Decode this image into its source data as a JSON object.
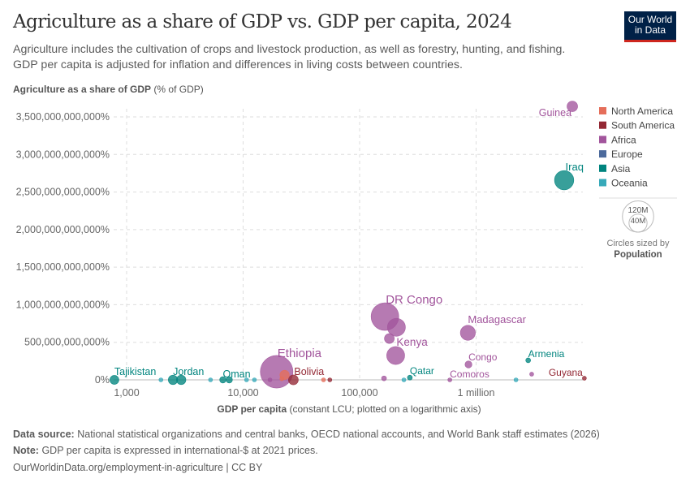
{
  "header": {
    "title": "Agriculture as a share of GDP vs. GDP per capita, 2024",
    "subtitle_line1": "Agriculture includes the cultivation of crops and livestock production, as well as forestry, hunting, and fishing.",
    "subtitle_line2": "GDP per capita is adjusted for inflation and differences in living costs between countries.",
    "logo_line1": "Our World",
    "logo_line2": "in Data"
  },
  "footer": {
    "source_label": "Data source:",
    "source_text": "National statistical organizations and central banks, OECD national accounts, and World Bank staff estimates (2026)",
    "note_label": "Note:",
    "note_text": "GDP per capita is expressed in international-$ at 2021 prices.",
    "url": "OurWorldinData.org/employment-in-agriculture | CC BY"
  },
  "chart_data": {
    "type": "scatter",
    "title": "Agriculture as a share of GDP vs. GDP per capita, 2024",
    "ylabel_bold": "Agriculture as a share of GDP",
    "ylabel_unit": "(% of GDP)",
    "xlabel_bold": "GDP per capita",
    "xlabel_rest": "(constant LCU; plotted on a logarithmic axis)",
    "x_scale": "log",
    "xlim": [
      770,
      8500000
    ],
    "ylim": [
      0,
      3500000000000
    ],
    "grid": true,
    "x_ticks": [
      {
        "value": 1000,
        "label": "1,000"
      },
      {
        "value": 10000,
        "label": "10,000"
      },
      {
        "value": 100000,
        "label": "100,000"
      },
      {
        "value": 1000000,
        "label": "1 million"
      }
    ],
    "y_ticks": [
      {
        "value": 0,
        "label": "0%"
      },
      {
        "value": 500000000000,
        "label": "500,000,000,000%"
      },
      {
        "value": 1000000000000,
        "label": "1,000,000,000,000%"
      },
      {
        "value": 1500000000000,
        "label": "1,500,000,000,000%"
      },
      {
        "value": 2000000000000,
        "label": "2,000,000,000,000%"
      },
      {
        "value": 2500000000000,
        "label": "2,500,000,000,000%"
      },
      {
        "value": 3000000000000,
        "label": "3,000,000,000,000%"
      },
      {
        "value": 3500000000000,
        "label": "3,500,000,000,000%"
      }
    ],
    "legend_placement": "right",
    "legend": [
      {
        "name": "North America",
        "color": "#E56E5A"
      },
      {
        "name": "South America",
        "color": "#932834"
      },
      {
        "name": "Africa",
        "color": "#A2559C"
      },
      {
        "name": "Europe",
        "color": "#4C6A9C"
      },
      {
        "name": "Asia",
        "color": "#00847E"
      },
      {
        "name": "Oceania",
        "color": "#38AABA"
      }
    ],
    "size_legend": {
      "title_line1": "Circles sized by",
      "title_line2": "Population",
      "big": "120M",
      "small": "40M",
      "big_value": 120,
      "small_value": 40
    },
    "points": [
      {
        "label": "Tajikistan",
        "region": "Asia",
        "x": 785,
        "y": 0,
        "pop": 10
      },
      {
        "label": "",
        "region": "Oceania",
        "x": 1970,
        "y": 0,
        "pop": 1
      },
      {
        "label": "Jordan",
        "region": "Asia",
        "x": 2500,
        "y": 0,
        "pop": 11
      },
      {
        "label": "",
        "region": "Asia",
        "x": 2940,
        "y": 0,
        "pop": 11
      },
      {
        "label": "",
        "region": "Oceania",
        "x": 5250,
        "y": 0,
        "pop": 1
      },
      {
        "label": "Oman",
        "region": "Asia",
        "x": 6700,
        "y": 0,
        "pop": 5
      },
      {
        "label": "",
        "region": "Asia",
        "x": 7600,
        "y": 0,
        "pop": 5
      },
      {
        "label": "",
        "region": "Oceania",
        "x": 10700,
        "y": 0,
        "pop": 1
      },
      {
        "label": "",
        "region": "Oceania",
        "x": 12500,
        "y": 0,
        "pop": 1.5
      },
      {
        "label": "",
        "region": "Africa",
        "x": 17000,
        "y": 0,
        "pop": 1.5
      },
      {
        "label": "Ethiopia",
        "region": "Africa",
        "x": 19400,
        "y": 108000000000,
        "pop": 132
      },
      {
        "label": "",
        "region": "North America",
        "x": 22700,
        "y": 65000000000,
        "pop": 11
      },
      {
        "label": "",
        "region": "North America",
        "x": 21500,
        "y": 15000000000,
        "pop": 1.5
      },
      {
        "label": "Bolivia",
        "region": "South America",
        "x": 27000,
        "y": 0,
        "pop": 12
      },
      {
        "label": "",
        "region": "North America",
        "x": 49000,
        "y": 0,
        "pop": 1
      },
      {
        "label": "",
        "region": "South America",
        "x": 55500,
        "y": 0,
        "pop": 1
      },
      {
        "label": "",
        "region": "Africa",
        "x": 162000,
        "y": 20000000000,
        "pop": 3
      },
      {
        "label": "DR Congo",
        "region": "Africa",
        "x": 165000,
        "y": 842000000000,
        "pop": 95
      },
      {
        "label": "",
        "region": "Africa",
        "x": 207000,
        "y": 700000000000,
        "pop": 40
      },
      {
        "label": "",
        "region": "Africa",
        "x": 180000,
        "y": 550000000000,
        "pop": 12
      },
      {
        "label": "Kenya",
        "region": "Africa",
        "x": 204000,
        "y": 324000000000,
        "pop": 40
      },
      {
        "label": "",
        "region": "Oceania",
        "x": 240000,
        "y": 0,
        "pop": 1
      },
      {
        "label": "Qatar",
        "region": "Asia",
        "x": 270000,
        "y": 30000000000,
        "pop": 3
      },
      {
        "label": "Comoros",
        "region": "Africa",
        "x": 595000,
        "y": 0,
        "pop": 1
      },
      {
        "label": "Madagascar",
        "region": "Africa",
        "x": 850000,
        "y": 626000000000,
        "pop": 28
      },
      {
        "label": "Congo",
        "region": "Africa",
        "x": 860000,
        "y": 205000000000,
        "pop": 6
      },
      {
        "label": "",
        "region": "Oceania",
        "x": 2200000,
        "y": 0,
        "pop": 1
      },
      {
        "label": "Armenia",
        "region": "Asia",
        "x": 2800000,
        "y": 260000000000,
        "pop": 3
      },
      {
        "label": "",
        "region": "Africa",
        "x": 3000000,
        "y": 76000000000,
        "pop": 1
      },
      {
        "label": "Guyana",
        "region": "South America",
        "x": 8500000,
        "y": 22000000000,
        "pop": 1
      },
      {
        "label": "Guinea",
        "region": "Africa",
        "x": 6700000,
        "y": 3640000000000,
        "pop": 14
      },
      {
        "label": "Iraq",
        "region": "Asia",
        "x": 5700000,
        "y": 2657000000000,
        "pop": 46
      }
    ]
  }
}
